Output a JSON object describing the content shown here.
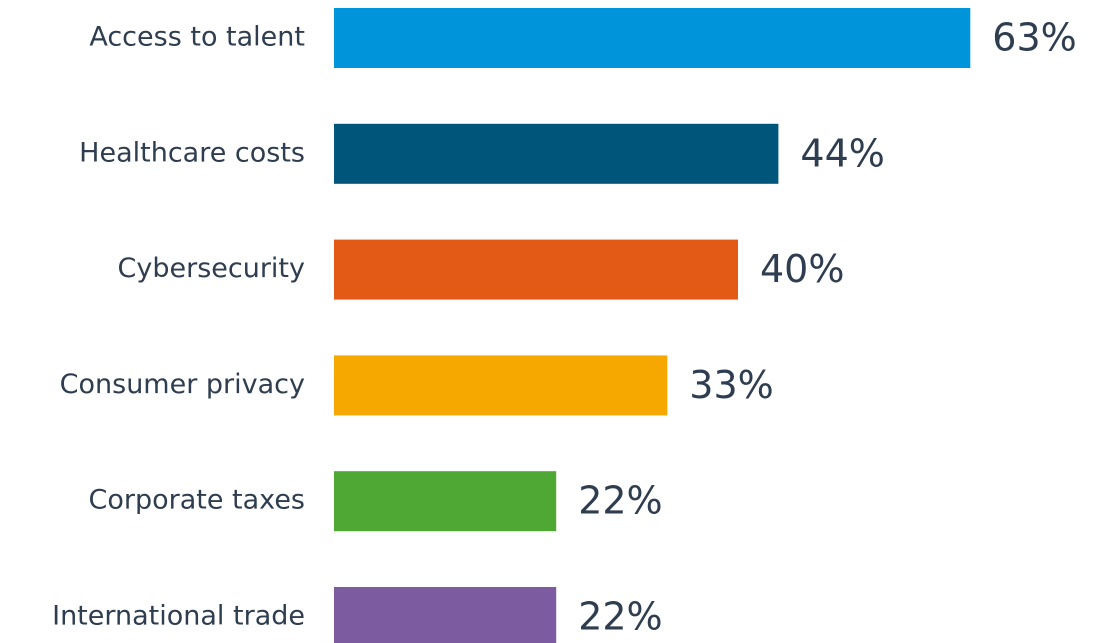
{
  "chart_data": {
    "type": "bar",
    "orientation": "horizontal",
    "categories": [
      "Access to talent",
      "Healthcare costs",
      "Cybersecurity",
      "Consumer privacy",
      "Corporate taxes",
      "International trade"
    ],
    "values": [
      63,
      44,
      40,
      33,
      22,
      22
    ],
    "value_labels": [
      "63%",
      "44%",
      "40%",
      "33%",
      "22%",
      "22%"
    ],
    "colors": [
      "#0095db",
      "#00567a",
      "#e35a17",
      "#f7a800",
      "#4ea833",
      "#7c5ba1"
    ]
  }
}
